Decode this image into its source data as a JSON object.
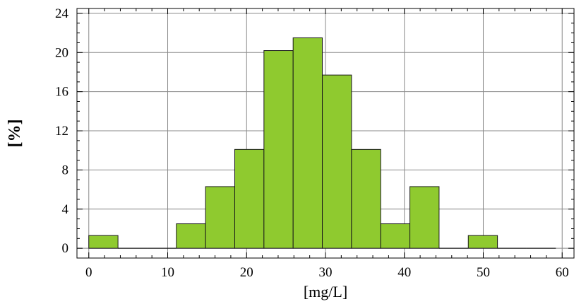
{
  "chart_data": {
    "type": "bar",
    "subtype": "histogram",
    "xlabel": "[mg/L]",
    "ylabel": "[%]",
    "xlim": [
      -1.5,
      61.5
    ],
    "ylim": [
      -1,
      24.5
    ],
    "xticks": [
      0,
      10,
      20,
      30,
      40,
      50,
      60
    ],
    "yticks": [
      0,
      4,
      8,
      12,
      16,
      20,
      24
    ],
    "grid": true,
    "bar_color": "#8fca2f",
    "bins": [
      {
        "x0": 0.0,
        "x1": 3.7,
        "value": 1.3
      },
      {
        "x0": 3.7,
        "x1": 7.4,
        "value": 0
      },
      {
        "x0": 7.4,
        "x1": 11.1,
        "value": 0
      },
      {
        "x0": 11.1,
        "x1": 14.8,
        "value": 2.5
      },
      {
        "x0": 14.8,
        "x1": 18.5,
        "value": 6.3
      },
      {
        "x0": 18.5,
        "x1": 22.2,
        "value": 10.1
      },
      {
        "x0": 22.2,
        "x1": 25.9,
        "value": 20.2
      },
      {
        "x0": 25.9,
        "x1": 29.6,
        "value": 21.5
      },
      {
        "x0": 29.6,
        "x1": 33.3,
        "value": 17.7
      },
      {
        "x0": 33.3,
        "x1": 37.0,
        "value": 10.1
      },
      {
        "x0": 37.0,
        "x1": 40.7,
        "value": 2.5
      },
      {
        "x0": 40.7,
        "x1": 44.4,
        "value": 6.3
      },
      {
        "x0": 44.4,
        "x1": 48.1,
        "value": 0
      },
      {
        "x0": 48.1,
        "x1": 51.8,
        "value": 1.3
      },
      {
        "x0": 51.8,
        "x1": 55.5,
        "value": 0
      },
      {
        "x0": 55.5,
        "x1": 59.2,
        "value": 0
      }
    ]
  }
}
